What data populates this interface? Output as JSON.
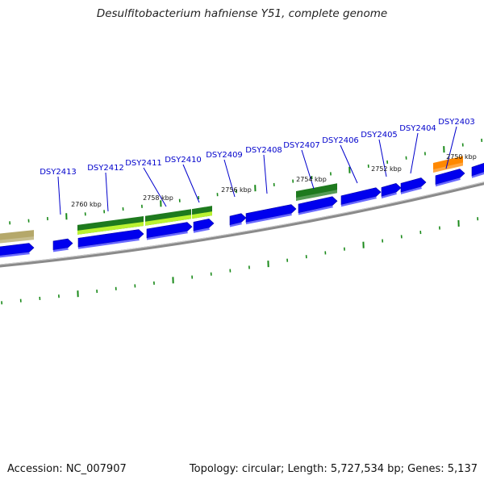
{
  "header": {
    "title": "Desulfitobacterium hafniense Y51, complete genome"
  },
  "footer": {
    "accession": "Accession: NC_007907",
    "summary": "Topology: circular; Length: 5,727,534 bp; Genes: 5,137"
  },
  "colors": {
    "forward_cds": "#0000ee",
    "forward_cds_shade": "#6a6aff",
    "hit_dark_green": "#1e7a1e",
    "hit_light_green": "#ccff33",
    "hit_orange": "#ff8800",
    "hit_olive": "#b5a86a",
    "tick": "#1a8a1a",
    "backbone": "#888888",
    "label": "#0000cc"
  },
  "gene_labels": [
    "DSY2413",
    "DSY2412",
    "DSY2411",
    "DSY2410",
    "DSY2409",
    "DSY2408",
    "DSY2407",
    "DSY2406",
    "DSY2405",
    "DSY2404",
    "DSY2403"
  ],
  "kbp_labels": [
    "2760 kbp",
    "2758 kbp",
    "2756 kbp",
    "2754 kbp",
    "2752 kbp",
    "2750 kbp"
  ]
}
